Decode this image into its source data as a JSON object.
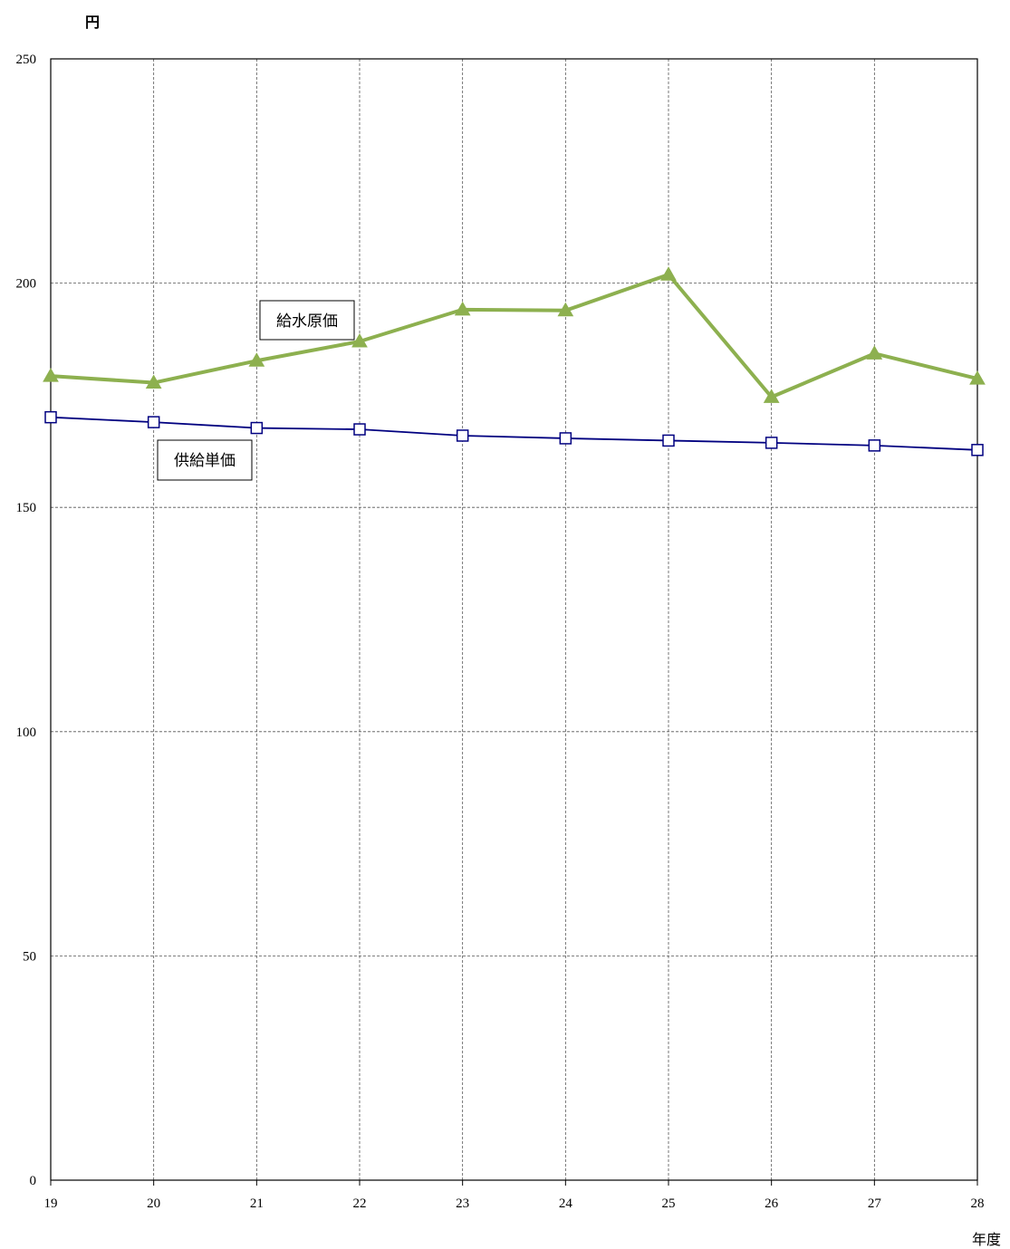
{
  "chart_data": {
    "type": "line",
    "y_unit": "円",
    "x_unit": "年度",
    "x": [
      "19",
      "20",
      "21",
      "22",
      "23",
      "24",
      "25",
      "26",
      "27",
      "28"
    ],
    "ylim": [
      0,
      250
    ],
    "y_ticks": [
      "0",
      "50",
      "100",
      "150",
      "200",
      "250"
    ],
    "grid": true,
    "series": [
      {
        "name": "給水原価",
        "color": "#8db04f",
        "marker": "triangle",
        "values": [
          179.3,
          177.8,
          182.7,
          187.0,
          194.1,
          193.9,
          201.9,
          174.6,
          184.3,
          178.7
        ]
      },
      {
        "name": "供給単価",
        "color": "#000080",
        "marker": "square",
        "values": [
          170.1,
          169.0,
          167.7,
          167.4,
          166.0,
          165.4,
          164.9,
          164.4,
          163.8,
          162.8
        ]
      }
    ]
  }
}
